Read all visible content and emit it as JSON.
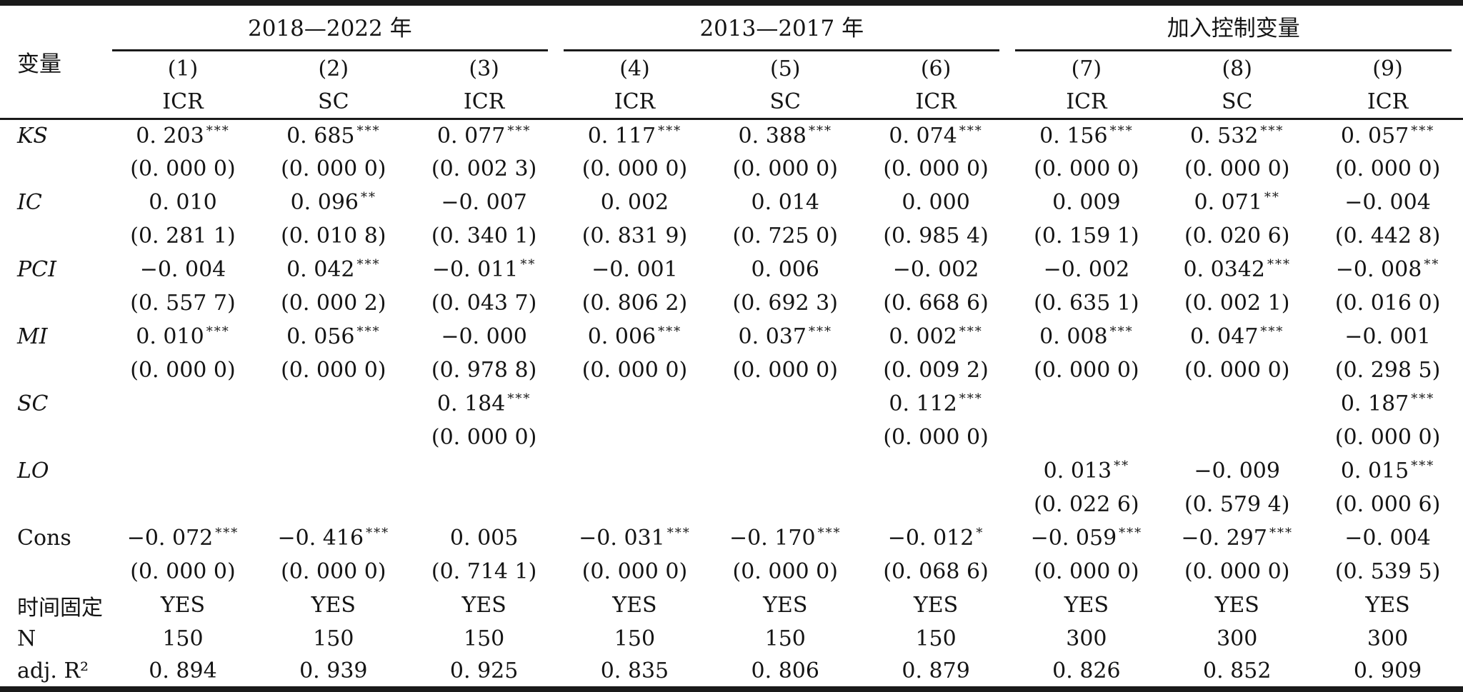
{
  "table": {
    "corner_label": "变量",
    "groups": [
      {
        "label": "2018—2022 年"
      },
      {
        "label": "2013—2017 年"
      },
      {
        "label": "加入控制变量"
      }
    ],
    "col_numbers": [
      "(1)",
      "(2)",
      "(3)",
      "(4)",
      "(5)",
      "(6)",
      "(7)",
      "(8)",
      "(9)"
    ],
    "col_models": [
      "ICR",
      "SC",
      "ICR",
      "ICR",
      "SC",
      "ICR",
      "ICR",
      "SC",
      "ICR"
    ],
    "rows": [
      {
        "label": "KS",
        "italic": true,
        "coef": [
          [
            "0. 203",
            "***"
          ],
          [
            "0. 685",
            "***"
          ],
          [
            "0. 077",
            "***"
          ],
          [
            "0. 117",
            "***"
          ],
          [
            "0. 388",
            "***"
          ],
          [
            "0. 074",
            "***"
          ],
          [
            "0. 156",
            "***"
          ],
          [
            "0. 532",
            "***"
          ],
          [
            "0. 057",
            "***"
          ]
        ],
        "p": [
          "(0. 000 0)",
          "(0. 000 0)",
          "(0. 002 3)",
          "(0. 000 0)",
          "(0. 000 0)",
          "(0. 000 0)",
          "(0. 000 0)",
          "(0. 000 0)",
          "(0. 000 0)"
        ]
      },
      {
        "label": "IC",
        "italic": true,
        "coef": [
          [
            "0. 010",
            ""
          ],
          [
            "0. 096",
            "**"
          ],
          [
            "−0. 007",
            ""
          ],
          [
            "0. 002",
            ""
          ],
          [
            "0. 014",
            ""
          ],
          [
            "0. 000",
            ""
          ],
          [
            "0. 009",
            ""
          ],
          [
            "0. 071",
            "**"
          ],
          [
            "−0. 004",
            ""
          ]
        ],
        "p": [
          "(0. 281 1)",
          "(0. 010 8)",
          "(0. 340 1)",
          "(0. 831 9)",
          "(0. 725 0)",
          "(0. 985 4)",
          "(0. 159 1)",
          "(0. 020 6)",
          "(0. 442 8)"
        ]
      },
      {
        "label": "PCI",
        "italic": true,
        "coef": [
          [
            "−0. 004",
            ""
          ],
          [
            "0. 042",
            "***"
          ],
          [
            "−0. 011",
            "**"
          ],
          [
            "−0. 001",
            ""
          ],
          [
            "0. 006",
            ""
          ],
          [
            "−0. 002",
            ""
          ],
          [
            "−0. 002",
            ""
          ],
          [
            "0. 0342",
            "***"
          ],
          [
            "−0. 008",
            "**"
          ]
        ],
        "p": [
          "(0. 557 7)",
          "(0. 000 2)",
          "(0. 043 7)",
          "(0. 806 2)",
          "(0. 692 3)",
          "(0. 668 6)",
          "(0. 635 1)",
          "(0. 002 1)",
          "(0. 016 0)"
        ]
      },
      {
        "label": "MI",
        "italic": true,
        "coef": [
          [
            "0. 010",
            "***"
          ],
          [
            "0. 056",
            "***"
          ],
          [
            "−0. 000",
            ""
          ],
          [
            "0. 006",
            "***"
          ],
          [
            "0. 037",
            "***"
          ],
          [
            "0. 002",
            "***"
          ],
          [
            "0. 008",
            "***"
          ],
          [
            "0. 047",
            "***"
          ],
          [
            "−0. 001",
            ""
          ]
        ],
        "p": [
          "(0. 000 0)",
          "(0. 000 0)",
          "(0. 978 8)",
          "(0. 000 0)",
          "(0. 000 0)",
          "(0. 009 2)",
          "(0. 000 0)",
          "(0. 000 0)",
          "(0. 298 5)"
        ]
      },
      {
        "label": "SC",
        "italic": true,
        "coef": [
          [
            "",
            ""
          ],
          [
            "",
            ""
          ],
          [
            "0. 184",
            "***"
          ],
          [
            "",
            ""
          ],
          [
            "",
            ""
          ],
          [
            "0. 112",
            "***"
          ],
          [
            "",
            ""
          ],
          [
            "",
            ""
          ],
          [
            "0. 187",
            "***"
          ]
        ],
        "p": [
          "",
          "",
          "(0. 000 0)",
          "",
          "",
          "(0. 000 0)",
          "",
          "",
          "(0. 000 0)"
        ]
      },
      {
        "label": "LO",
        "italic": true,
        "coef": [
          [
            "",
            ""
          ],
          [
            "",
            ""
          ],
          [
            "",
            ""
          ],
          [
            "",
            ""
          ],
          [
            "",
            ""
          ],
          [
            "",
            ""
          ],
          [
            "0. 013",
            "**"
          ],
          [
            "−0. 009",
            ""
          ],
          [
            "0. 015",
            "***"
          ]
        ],
        "p": [
          "",
          "",
          "",
          "",
          "",
          "",
          "(0. 022 6)",
          "(0. 579 4)",
          "(0. 000 6)"
        ]
      },
      {
        "label": "Cons",
        "italic": false,
        "coef": [
          [
            "−0. 072",
            "***"
          ],
          [
            "−0. 416",
            "***"
          ],
          [
            "0. 005",
            ""
          ],
          [
            "−0. 031",
            "***"
          ],
          [
            "−0. 170",
            "***"
          ],
          [
            "−0. 012",
            "*"
          ],
          [
            "−0. 059",
            "***"
          ],
          [
            "−0. 297",
            "***"
          ],
          [
            "−0. 004",
            ""
          ]
        ],
        "p": [
          "(0. 000 0)",
          "(0. 000 0)",
          "(0. 714 1)",
          "(0. 000 0)",
          "(0. 000 0)",
          "(0. 068 6)",
          "(0. 000 0)",
          "(0. 000 0)",
          "(0. 539 5)"
        ]
      }
    ],
    "footer": [
      {
        "label": "时间固定",
        "values": [
          "YES",
          "YES",
          "YES",
          "YES",
          "YES",
          "YES",
          "YES",
          "YES",
          "YES"
        ]
      },
      {
        "label": "N",
        "values": [
          "150",
          "150",
          "150",
          "150",
          "150",
          "150",
          "300",
          "300",
          "300"
        ]
      },
      {
        "label": "adj. R²",
        "values": [
          "0. 894",
          "0. 939",
          "0. 925",
          "0. 835",
          "0. 806",
          "0. 879",
          "0. 826",
          "0. 852",
          "0. 909"
        ]
      }
    ]
  }
}
